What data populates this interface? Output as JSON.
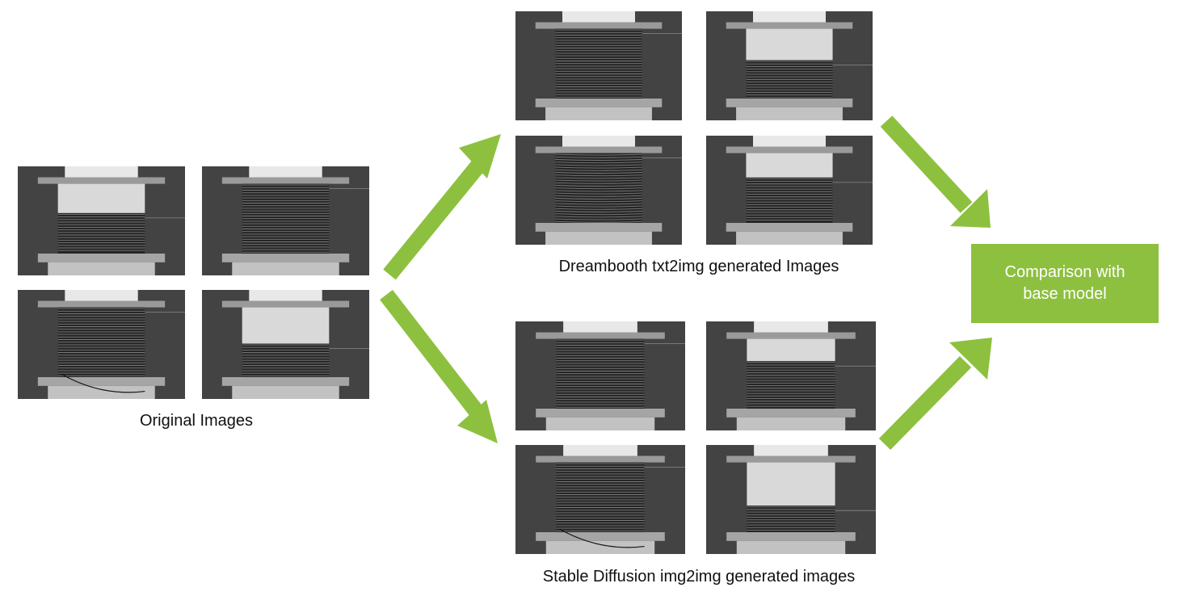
{
  "colors": {
    "accent": "#8dc03f",
    "box_text": "#ffffff",
    "photo_background": "#434343"
  },
  "captions": {
    "original": "Original Images",
    "dreambooth": "Dreambooth txt2img generated Images",
    "stable_diffusion": "Stable Diffusion img2img generated images"
  },
  "result_box": {
    "line1": "Comparison with",
    "line2": "base model"
  },
  "groups": [
    {
      "id": "original",
      "images": [
        {
          "name": "original-image-1",
          "white_top": 0.42,
          "wire": "tight"
        },
        {
          "name": "original-image-2",
          "white_top": 0.0,
          "wire": "tight"
        },
        {
          "name": "original-image-3",
          "white_top": 0.0,
          "wire": "loose"
        },
        {
          "name": "original-image-4",
          "white_top": 0.52,
          "wire": "tight"
        }
      ]
    },
    {
      "id": "dreambooth",
      "images": [
        {
          "name": "dreambooth-image-1",
          "white_top": 0.0,
          "wire": "tight"
        },
        {
          "name": "dreambooth-image-2",
          "white_top": 0.45,
          "wire": "tight"
        },
        {
          "name": "dreambooth-image-3",
          "white_top": 0.0,
          "wire": "wavy"
        },
        {
          "name": "dreambooth-image-4",
          "white_top": 0.35,
          "wire": "tight"
        }
      ]
    },
    {
      "id": "stable_diffusion",
      "images": [
        {
          "name": "stable-diffusion-image-1",
          "white_top": 0.0,
          "wire": "tight"
        },
        {
          "name": "stable-diffusion-image-2",
          "white_top": 0.32,
          "wire": "tight"
        },
        {
          "name": "stable-diffusion-image-3",
          "white_top": 0.0,
          "wire": "loose"
        },
        {
          "name": "stable-diffusion-image-4",
          "white_top": 0.62,
          "wire": "tight"
        }
      ]
    }
  ]
}
